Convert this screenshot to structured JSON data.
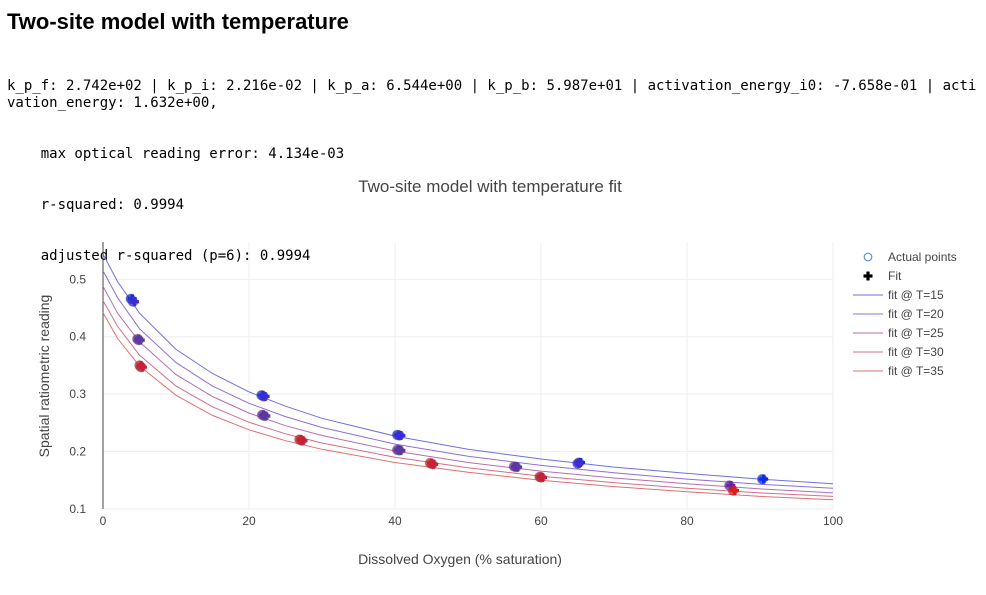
{
  "title": "Two-site model with temperature",
  "params_line": "k_p_f: 2.742e+02 | k_p_i: 2.216e-02 | k_p_a: 6.544e+00 | k_p_b: 5.987e+01 | activation_energy_i0: -7.658e-01 | activation_energy: 1.632e+00,",
  "stats": [
    "max optical reading error: 4.134e-03",
    "r-squared: 0.9994",
    "adjusted r-squared (p=6): 0.9994"
  ],
  "chart_data": {
    "type": "scatter",
    "title": "Two-site model with temperature fit",
    "xlabel": "Dissolved Oxygen (% saturation)",
    "ylabel": "Spatial ratiometric reading",
    "xlim": [
      0,
      100
    ],
    "ylim": [
      0.1,
      0.565
    ],
    "xticks": [
      0,
      20,
      40,
      60,
      80,
      100
    ],
    "yticks": [
      0.1,
      0.2,
      0.3,
      0.4,
      0.5
    ],
    "colors": {
      "fit_T15": "#6f6fe0",
      "fit_T20": "#8d6fd8",
      "fit_T25": "#b46fb4",
      "fit_T30": "#d46f8a",
      "fit_T35": "#e07070",
      "actual_marker": "#5b8fd6",
      "fit_marker": "#000000"
    },
    "legend": [
      {
        "name": "Actual points",
        "kind": "circle"
      },
      {
        "name": "Fit",
        "kind": "cross"
      },
      {
        "name": "fit @ T=15",
        "kind": "line",
        "color": "#6f6fe0"
      },
      {
        "name": "fit @ T=20",
        "kind": "line",
        "color": "#8d6fd8"
      },
      {
        "name": "fit @ T=25",
        "kind": "line",
        "color": "#b46fb4"
      },
      {
        "name": "fit @ T=30",
        "kind": "line",
        "color": "#d46f8a"
      },
      {
        "name": "fit @ T=35",
        "kind": "line",
        "color": "#e07070"
      }
    ],
    "fit_lines": [
      {
        "name": "fit @ T=15",
        "color": "#6f6fe0",
        "x": [
          0,
          2,
          5,
          10,
          15,
          20,
          25,
          30,
          40,
          50,
          60,
          70,
          80,
          90,
          100
        ],
        "y": [
          0.544,
          0.496,
          0.441,
          0.378,
          0.336,
          0.304,
          0.279,
          0.258,
          0.227,
          0.204,
          0.187,
          0.173,
          0.162,
          0.152,
          0.144
        ]
      },
      {
        "name": "fit @ T=20",
        "color": "#8d6fd8",
        "x": [
          0,
          2,
          5,
          10,
          15,
          20,
          25,
          30,
          40,
          50,
          60,
          70,
          80,
          90,
          100
        ],
        "y": [
          0.515,
          0.468,
          0.414,
          0.355,
          0.314,
          0.284,
          0.261,
          0.242,
          0.213,
          0.192,
          0.176,
          0.163,
          0.152,
          0.143,
          0.136
        ]
      },
      {
        "name": "fit @ T=25",
        "color": "#b46fb4",
        "x": [
          0,
          2,
          5,
          10,
          15,
          20,
          25,
          30,
          40,
          50,
          60,
          70,
          80,
          90,
          100
        ],
        "y": [
          0.488,
          0.441,
          0.391,
          0.334,
          0.296,
          0.267,
          0.245,
          0.228,
          0.201,
          0.181,
          0.166,
          0.154,
          0.144,
          0.135,
          0.128
        ]
      },
      {
        "name": "fit @ T=30",
        "color": "#d46f8a",
        "x": [
          0,
          2,
          5,
          10,
          15,
          20,
          25,
          30,
          40,
          50,
          60,
          70,
          80,
          90,
          100
        ],
        "y": [
          0.463,
          0.418,
          0.368,
          0.314,
          0.278,
          0.251,
          0.231,
          0.215,
          0.19,
          0.172,
          0.157,
          0.146,
          0.136,
          0.128,
          0.122
        ]
      },
      {
        "name": "fit @ T=35",
        "color": "#e07070",
        "x": [
          0,
          2,
          5,
          10,
          15,
          20,
          25,
          30,
          40,
          50,
          60,
          70,
          80,
          90,
          100
        ],
        "y": [
          0.442,
          0.397,
          0.349,
          0.298,
          0.263,
          0.238,
          0.219,
          0.204,
          0.181,
          0.164,
          0.15,
          0.139,
          0.13,
          0.122,
          0.116
        ]
      }
    ],
    "point_groups": [
      {
        "color": "#0a2be8",
        "points": [
          [
            3.8,
            0.466
          ],
          [
            21.7,
            0.298
          ],
          [
            40.3,
            0.229
          ],
          [
            65.2,
            0.181
          ],
          [
            90.3,
            0.152
          ]
        ]
      },
      {
        "color": "#3b2bd8",
        "points": [
          [
            4.1,
            0.461
          ],
          [
            22.0,
            0.296
          ],
          [
            40.6,
            0.228
          ],
          [
            65.0,
            0.179
          ]
        ]
      },
      {
        "color": "#6a1fa8",
        "points": [
          [
            4.7,
            0.396
          ],
          [
            21.8,
            0.264
          ],
          [
            40.3,
            0.203
          ],
          [
            56.3,
            0.174
          ],
          [
            85.8,
            0.141
          ]
        ]
      },
      {
        "color": "#5a3aa0",
        "points": [
          [
            4.9,
            0.394
          ],
          [
            22.1,
            0.262
          ],
          [
            40.6,
            0.202
          ],
          [
            56.6,
            0.173
          ]
        ]
      },
      {
        "color": "#e01a1a",
        "points": [
          [
            5.0,
            0.35
          ],
          [
            26.9,
            0.221
          ],
          [
            44.8,
            0.18
          ],
          [
            59.8,
            0.156
          ],
          [
            86.3,
            0.132
          ]
        ]
      },
      {
        "color": "#c8203a",
        "points": [
          [
            5.2,
            0.347
          ],
          [
            27.2,
            0.219
          ],
          [
            45.1,
            0.178
          ],
          [
            60.0,
            0.155
          ]
        ]
      }
    ]
  }
}
